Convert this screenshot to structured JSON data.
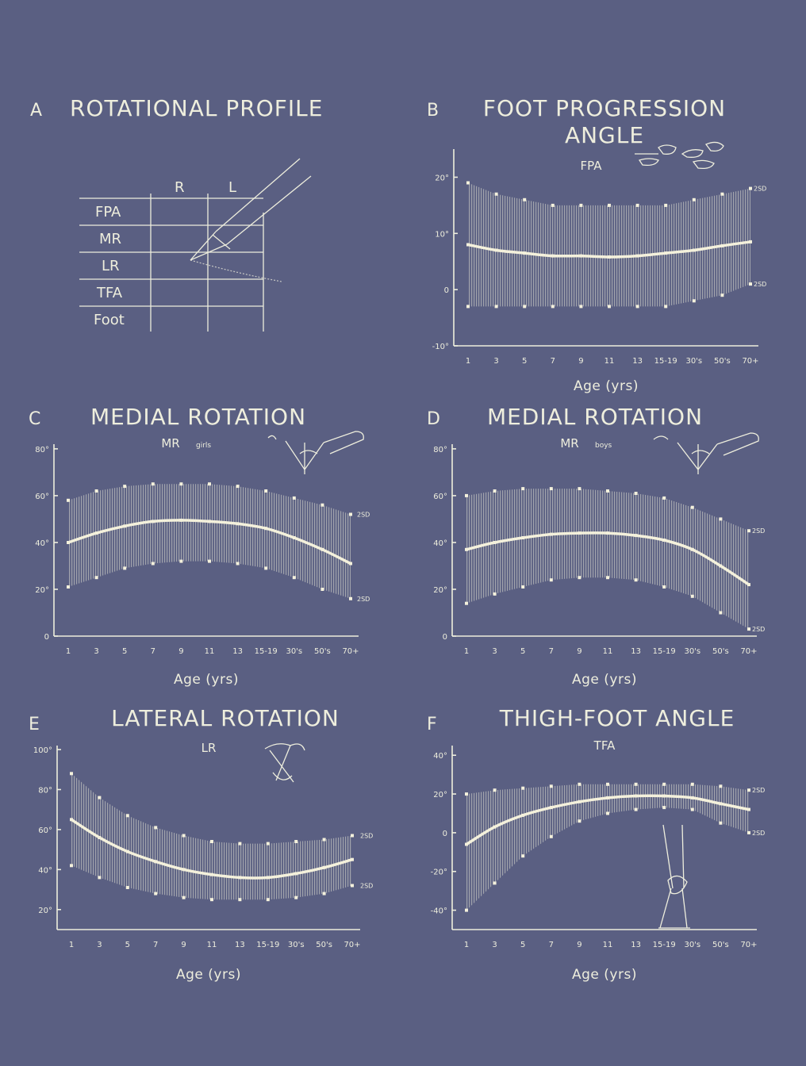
{
  "panel_a": {
    "letter": "A",
    "title": "ROTATIONAL PROFILE",
    "col_headers": [
      "R",
      "L"
    ],
    "rows": [
      "FPA",
      "MR",
      "LR",
      "TFA",
      "Foot"
    ]
  },
  "sd_label": "2SD",
  "chart_data": [
    {
      "id": "B",
      "type": "line",
      "letter": "B",
      "title_lines": [
        "FOOT PROGRESSION",
        "ANGLE"
      ],
      "subtitle": "FPA",
      "subtitle_small": "",
      "xlabel": "Age (yrs)",
      "x_ticks": [
        "1",
        "3",
        "5",
        "7",
        "9",
        "11",
        "13",
        "15-19",
        "30's",
        "50's",
        "70+"
      ],
      "y_ticks": [
        "20°",
        "10°",
        "0",
        "-10°"
      ],
      "y_tick_values": [
        20,
        10,
        0,
        -10
      ],
      "ylim": [
        -10,
        25
      ],
      "series": [
        {
          "values": [
            8,
            7,
            6.5,
            6,
            6,
            5.8,
            6,
            6.5,
            7,
            7.8,
            8.5
          ]
        },
        {
          "values": [
            19,
            17,
            16,
            15,
            15,
            15,
            15,
            15,
            16,
            17,
            18
          ]
        },
        {
          "values": [
            -3,
            -3,
            -3,
            -3,
            -3,
            -3,
            -3,
            -3,
            -2,
            -1,
            1
          ]
        }
      ]
    },
    {
      "id": "C",
      "type": "line",
      "letter": "C",
      "title_lines": [
        "MEDIAL ROTATION"
      ],
      "subtitle": "MR",
      "subtitle_small": "girls",
      "xlabel": "Age (yrs)",
      "x_ticks": [
        "1",
        "3",
        "5",
        "7",
        "9",
        "11",
        "13",
        "15-19",
        "30's",
        "50's",
        "70+"
      ],
      "y_ticks": [
        "80°",
        "60°",
        "40°",
        "20°",
        "0"
      ],
      "y_tick_values": [
        80,
        60,
        40,
        20,
        0
      ],
      "ylim": [
        0,
        82
      ],
      "series": [
        {
          "values": [
            40,
            44,
            47,
            49,
            49.5,
            49,
            48,
            46,
            42,
            37,
            31
          ]
        },
        {
          "values": [
            58,
            62,
            64,
            65,
            65,
            65,
            64,
            62,
            59,
            56,
            52
          ]
        },
        {
          "values": [
            21,
            25,
            29,
            31,
            32,
            32,
            31,
            29,
            25,
            20,
            16
          ]
        }
      ]
    },
    {
      "id": "D",
      "type": "line",
      "letter": "D",
      "title_lines": [
        "MEDIAL ROTATION"
      ],
      "subtitle": "MR",
      "subtitle_small": "boys",
      "xlabel": "Age (yrs)",
      "x_ticks": [
        "1",
        "3",
        "5",
        "7",
        "9",
        "11",
        "13",
        "15-19",
        "30's",
        "50's",
        "70+"
      ],
      "y_ticks": [
        "80°",
        "60°",
        "40°",
        "20°",
        "0"
      ],
      "y_tick_values": [
        80,
        60,
        40,
        20,
        0
      ],
      "ylim": [
        0,
        82
      ],
      "series": [
        {
          "values": [
            37,
            40,
            42,
            43.5,
            44,
            44,
            43,
            41,
            37,
            30,
            22
          ]
        },
        {
          "values": [
            60,
            62,
            63,
            63,
            63,
            62,
            61,
            59,
            55,
            50,
            45
          ]
        },
        {
          "values": [
            14,
            18,
            21,
            24,
            25,
            25,
            24,
            21,
            17,
            10,
            3
          ]
        }
      ]
    },
    {
      "id": "E",
      "type": "line",
      "letter": "E",
      "title_lines": [
        "LATERAL ROTATION"
      ],
      "subtitle": "LR",
      "subtitle_small": "",
      "xlabel": "Age  (yrs)",
      "x_ticks": [
        "1",
        "3",
        "5",
        "7",
        "9",
        "11",
        "13",
        "15-19",
        "30's",
        "50's",
        "70+"
      ],
      "y_ticks": [
        "100°",
        "80°",
        "60°",
        "40°",
        "20°"
      ],
      "y_tick_values": [
        100,
        80,
        60,
        40,
        20
      ],
      "ylim": [
        10,
        102
      ],
      "series": [
        {
          "values": [
            65,
            56,
            49,
            44,
            40,
            37.5,
            36,
            36,
            38,
            41,
            45
          ]
        },
        {
          "values": [
            88,
            76,
            67,
            61,
            57,
            54,
            53,
            53,
            54,
            55,
            57
          ]
        },
        {
          "values": [
            42,
            36,
            31,
            28,
            26,
            25,
            25,
            25,
            26,
            28,
            32
          ]
        }
      ]
    },
    {
      "id": "F",
      "type": "line",
      "letter": "F",
      "title_lines": [
        "THIGH-FOOT ANGLE"
      ],
      "subtitle": "TFA",
      "subtitle_small": "",
      "xlabel": "Age (yrs)",
      "x_ticks": [
        "1",
        "3",
        "5",
        "7",
        "9",
        "11",
        "13",
        "15-19",
        "30's",
        "50's",
        "70+"
      ],
      "y_ticks": [
        "40°",
        "20°",
        "0",
        "-20°",
        "-40°"
      ],
      "y_tick_values": [
        40,
        20,
        0,
        -20,
        -40
      ],
      "ylim": [
        -50,
        45
      ],
      "series": [
        {
          "values": [
            -6,
            3,
            9,
            13,
            16,
            18,
            19,
            19,
            18,
            15,
            12
          ]
        },
        {
          "values": [
            20,
            22,
            23,
            24,
            25,
            25,
            25,
            25,
            25,
            24,
            22
          ]
        },
        {
          "values": [
            -40,
            -26,
            -12,
            -2,
            6,
            10,
            12,
            13,
            12,
            5,
            0
          ]
        }
      ]
    }
  ]
}
